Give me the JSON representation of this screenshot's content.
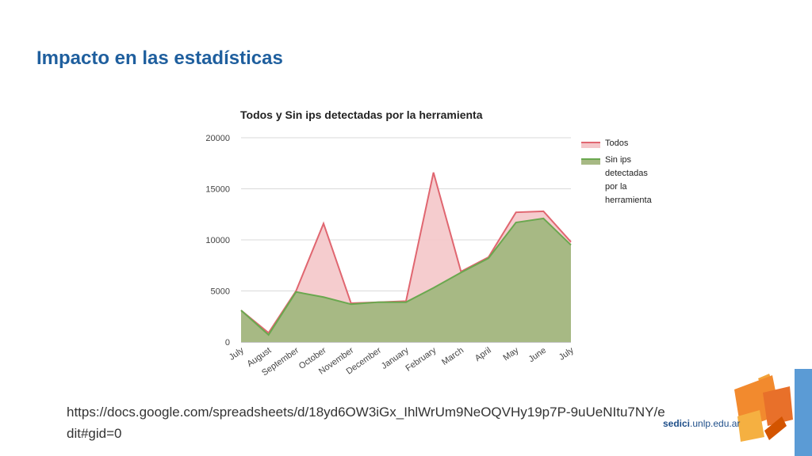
{
  "slide": {
    "title": "Impacto en las estadísticas",
    "url": "https://docs.google.com/spreadsheets/d/18yd6OW3iGx_IhlWrUm9NeOQVHy19p7P-9uUeNItu7NY/edit#gid=0",
    "logo_text_bold": "sedici",
    "logo_text_rest": ".unlp.edu.ar"
  },
  "chart_data": {
    "type": "area",
    "title": "Todos y Sin ips detectadas por la herramienta",
    "categories": [
      "July",
      "August",
      "September",
      "October",
      "November",
      "December",
      "January",
      "February",
      "March",
      "April",
      "May",
      "June",
      "July"
    ],
    "ylim": [
      0,
      20000
    ],
    "yticks": [
      "0",
      "5000",
      "10000",
      "15000",
      "20000"
    ],
    "ytick_values": [
      0,
      5000,
      10000,
      15000,
      20000
    ],
    "grid": true,
    "legend_position": "right",
    "series": [
      {
        "name": "Todos",
        "values": [
          3100,
          900,
          5000,
          11600,
          3800,
          3900,
          4000,
          16600,
          6900,
          8300,
          12700,
          12800,
          9800
        ],
        "color": "#e06670",
        "fill": "#f4c6c9"
      },
      {
        "name": "Sin ips detectadas por la herramienta",
        "values": [
          3100,
          700,
          4900,
          4400,
          3700,
          3900,
          3900,
          5300,
          6800,
          8200,
          11700,
          12100,
          9500
        ],
        "color": "#6aa84f",
        "fill": "#a7b984"
      }
    ],
    "legend_lines": [
      [
        "Todos"
      ],
      [
        "Sin ips",
        "detectadas",
        "por la",
        "herramienta"
      ]
    ]
  }
}
